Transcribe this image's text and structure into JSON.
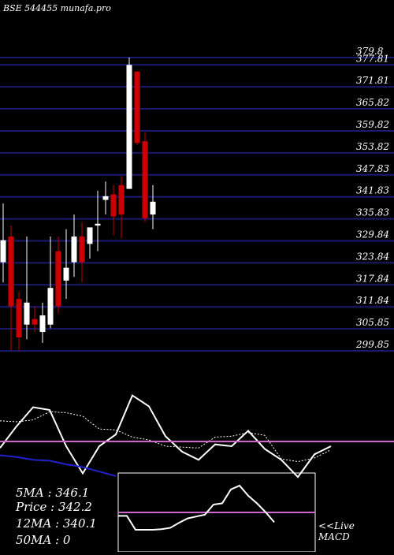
{
  "header": {
    "title": "BSE 544455 munafa.pro"
  },
  "colors": {
    "background": "#000000",
    "gridline": "#1a1a6e",
    "candle_up": "#ffffff",
    "candle_down": "#cc0000",
    "ma_short": "#ffffff",
    "ma_long": "#2222cc",
    "macd_line": "#ffffff",
    "signal_line": "#cc66cc"
  },
  "chart_data": [
    {
      "type": "candlestick",
      "title": "BSE 544455 munafa.pro",
      "y_ticks": [
        "379.8",
        "377.81",
        "371.81",
        "365.82",
        "359.82",
        "353.82",
        "347.83",
        "341.83",
        "335.83",
        "329.84",
        "323.84",
        "317.84",
        "311.84",
        "305.85",
        "299.85"
      ],
      "ylim": [
        299.85,
        379.8
      ],
      "grid": true,
      "candles": [
        {
          "open": 324.0,
          "high": 340.0,
          "low": 318.5,
          "close": 330.0
        },
        {
          "open": 331.0,
          "high": 334.0,
          "low": 300.0,
          "close": 312.0
        },
        {
          "open": 314.0,
          "high": 316.0,
          "low": 299.8,
          "close": 303.5
        },
        {
          "open": 307.0,
          "high": 331.0,
          "low": 303.0,
          "close": 313.0
        },
        {
          "open": 308.5,
          "high": 312.0,
          "low": 305.0,
          "close": 307.0
        },
        {
          "open": 305.0,
          "high": 313.0,
          "low": 302.0,
          "close": 309.5
        },
        {
          "open": 307.0,
          "high": 331.0,
          "low": 306.0,
          "close": 317.0
        },
        {
          "open": 327.0,
          "high": 331.0,
          "low": 310.0,
          "close": 312.0
        },
        {
          "open": 319.0,
          "high": 333.0,
          "low": 314.0,
          "close": 322.5
        },
        {
          "open": 324.0,
          "high": 337.0,
          "low": 320.0,
          "close": 331.0
        },
        {
          "open": 331.0,
          "high": 335.0,
          "low": 318.5,
          "close": 324.0
        },
        {
          "open": 329.0,
          "high": 333.0,
          "low": 325.0,
          "close": 333.5
        },
        {
          "open": 334.0,
          "high": 343.5,
          "low": 327.0,
          "close": 334.5
        },
        {
          "open": 341.0,
          "high": 346.0,
          "low": 337.0,
          "close": 342.0
        },
        {
          "open": 342.5,
          "high": 345.0,
          "low": 331.5,
          "close": 336.5
        },
        {
          "open": 345.0,
          "high": 347.5,
          "low": 330.5,
          "close": 337.0
        },
        {
          "open": 344.0,
          "high": 379.8,
          "low": 344.0,
          "close": 377.8
        },
        {
          "open": 376.0,
          "high": 376.0,
          "low": 356.0,
          "close": 356.5
        },
        {
          "open": 357.0,
          "high": 359.5,
          "low": 335.0,
          "close": 336.0
        },
        {
          "open": 337.0,
          "high": 345.0,
          "low": 333.0,
          "close": 340.5
        }
      ]
    },
    {
      "type": "line",
      "series": [
        {
          "values": [
            38,
            62,
            83,
            80,
            40,
            10,
            40,
            53,
            96,
            84,
            51,
            34,
            25,
            42,
            40,
            57,
            37,
            25,
            6,
            31,
            40
          ]
        },
        {
          "values": [
            68,
            67,
            69,
            78,
            77,
            73,
            59,
            58,
            50,
            47,
            40,
            39,
            38,
            50,
            51,
            55,
            52,
            26,
            23,
            27,
            36
          ]
        },
        {
          "values": [
            30,
            28,
            25,
            24,
            20,
            17,
            12,
            7
          ]
        }
      ]
    },
    {
      "type": "line",
      "name": "MACD",
      "series": [
        {
          "values": [
            42,
            42,
            20,
            20,
            20,
            21,
            23,
            31,
            38,
            41,
            44,
            60,
            62,
            84,
            90,
            74,
            62,
            48,
            32
          ]
        },
        {
          "values": [
            0,
            0,
            0,
            0,
            0,
            0,
            0,
            0,
            0,
            0,
            0,
            0,
            0,
            0,
            0,
            0,
            0,
            0,
            0
          ]
        }
      ]
    }
  ],
  "stats": [
    {
      "label": "5MA",
      "value": "346.1"
    },
    {
      "label": "Price",
      "value": "342.2"
    },
    {
      "label": "12MA",
      "value": "340.1"
    },
    {
      "label": "50MA",
      "value": "0"
    }
  ],
  "macd": {
    "live_label": "<<Live",
    "label": "MACD"
  }
}
